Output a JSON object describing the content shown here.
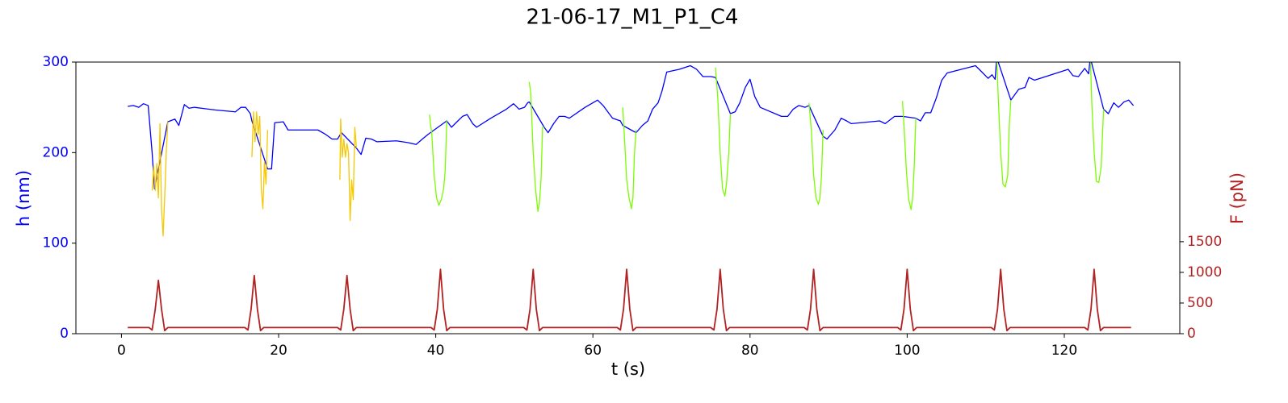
{
  "chart_data": {
    "type": "line",
    "title": "21-06-17_M1_P1_C4",
    "xlabel": "t (s)",
    "ylabel": "h (nm)",
    "y2label": "F (pN)",
    "ycolor": "#0000ff",
    "y2color": "#b22222",
    "xlim": [
      -5.8,
      134.7
    ],
    "xticks": [
      0,
      20,
      40,
      60,
      80,
      100,
      120
    ],
    "ylim": [
      0,
      300
    ],
    "yticks": [
      0,
      100,
      200,
      300
    ],
    "y2lim": [
      0,
      4430
    ],
    "y2ticks": [
      0,
      500,
      1000,
      1500
    ],
    "series": [
      {
        "color": "#0000ff",
        "axis": "y",
        "x": [
          0.8,
          1.5,
          2.2,
          2.8,
          3.4,
          3.9,
          4.2,
          5.9,
          6.8,
          7.3,
          8.0,
          8.6,
          9.3,
          12,
          14.5,
          15.2,
          15.8,
          16.4,
          16.6,
          18.6,
          19.1,
          19.5,
          20.6,
          21.2,
          25,
          26,
          26.8,
          27.5,
          28,
          29.9,
          30.5,
          31.1,
          31.8,
          32.5,
          35,
          36.5,
          37.5,
          38.3,
          39,
          41.4,
          42,
          42.7,
          43.4,
          44.0,
          44.7,
          45.2,
          47,
          49,
          49.9,
          50.6,
          51.3,
          51.7,
          51.9,
          53.8,
          54.3,
          55,
          55.7,
          56.4,
          57,
          59,
          60.6,
          61.3,
          62.5,
          63.5,
          63.8,
          65.5,
          66.3,
          67.0,
          67.6,
          68.3,
          68.8,
          69.4,
          71,
          72.4,
          73.2,
          74,
          75,
          75.6,
          77.5,
          78.1,
          78.7,
          79.4,
          80.0,
          80.6,
          81.3,
          84,
          84.8,
          85.5,
          86.2,
          87,
          87.5,
          89.3,
          89.8,
          90.8,
          91.6,
          92.3,
          92.9,
          96.5,
          97.2,
          98.4,
          98.9,
          99.4,
          101.1,
          101.7,
          102.3,
          103,
          103.7,
          104.4,
          105.1,
          106,
          108.7,
          109.4,
          110.3,
          110.8,
          111.2,
          111.4,
          113.2,
          114.2,
          115,
          115.5,
          116.2,
          120.5,
          121.1,
          121.8,
          122.6,
          123.1,
          123.3,
          125.0,
          125.6,
          126.3,
          126.9,
          127.6,
          128.2,
          128.8
        ],
        "values": [
          251,
          252,
          250,
          254,
          252,
          200,
          160,
          234,
          237,
          230,
          253,
          249,
          250,
          247,
          245,
          250,
          250,
          243,
          235,
          182,
          182,
          233,
          234,
          225,
          225,
          220,
          215,
          215,
          222,
          205,
          198,
          216,
          215,
          212,
          213,
          211,
          209,
          215,
          220,
          235,
          228,
          234,
          240,
          242,
          232,
          228,
          238,
          248,
          254,
          248,
          250,
          255,
          256,
          228,
          222,
          232,
          240,
          240,
          238,
          250,
          258,
          252,
          238,
          235,
          230,
          222,
          230,
          235,
          248,
          255,
          268,
          289,
          292,
          296,
          292,
          284,
          284,
          283,
          243,
          245,
          255,
          272,
          281,
          262,
          250,
          240,
          240,
          248,
          252,
          250,
          252,
          218,
          215,
          225,
          238,
          235,
          232,
          235,
          232,
          240,
          240,
          240,
          238,
          235,
          244,
          244,
          260,
          280,
          288,
          290,
          296,
          290,
          282,
          286,
          281,
          305,
          258,
          270,
          272,
          283,
          280,
          292,
          285,
          284,
          293,
          287,
          305,
          248,
          243,
          255,
          250,
          256,
          258,
          252
        ]
      },
      {
        "color": "#f5c800",
        "axis": "y",
        "x": [
          3.9,
          4.1,
          4.3,
          4.5,
          4.7,
          4.9,
          5.1,
          5.3,
          5.5,
          5.7,
          5.9,
          10,
          16.6,
          16.8,
          17.0,
          17.2,
          17.4,
          17.6,
          17.8,
          18.0,
          18.2,
          18.4,
          18.6,
          23,
          27.8,
          27.9,
          28.1,
          28.3,
          28.5,
          28.7,
          28.9,
          29.1,
          29.3,
          29.5,
          29.7,
          29.9
        ],
        "values": [
          158,
          185,
          158,
          188,
          150,
          232,
          137,
          108,
          150,
          200,
          234,
          null,
          195,
          245,
          212,
          245,
          220,
          240,
          160,
          138,
          190,
          165,
          225,
          null,
          170,
          237,
          195,
          215,
          195,
          210,
          200,
          125,
          170,
          148,
          228,
          205
        ]
      },
      {
        "color": "#7cfc00",
        "axis": "y",
        "x": [
          39.2,
          39.5,
          39.8,
          40.1,
          40.4,
          40.7,
          41.0,
          41.2,
          41.4,
          46,
          51.9,
          52.1,
          52.4,
          52.7,
          53.0,
          53.2,
          53.4,
          53.6,
          53.8,
          58,
          63.8,
          64.0,
          64.3,
          64.6,
          64.9,
          65.1,
          65.3,
          65.5,
          70,
          75.6,
          75.9,
          76.2,
          76.5,
          76.8,
          77.0,
          77.3,
          77.5,
          82,
          87.5,
          87.8,
          88.1,
          88.4,
          88.7,
          88.9,
          89.1,
          89.3,
          94,
          99.4,
          99.6,
          99.9,
          100.2,
          100.5,
          100.7,
          100.9,
          101.1,
          106,
          111.4,
          111.6,
          111.9,
          112.2,
          112.5,
          112.8,
          113.0,
          113.2,
          118,
          123.3,
          123.5,
          123.8,
          124.1,
          124.4,
          124.7,
          125.0
        ],
        "values": [
          242,
          220,
          175,
          150,
          142,
          148,
          160,
          180,
          235,
          null,
          278,
          265,
          200,
          160,
          135,
          145,
          170,
          228,
          228,
          null,
          250,
          220,
          170,
          150,
          138,
          150,
          200,
          225,
          null,
          294,
          260,
          200,
          160,
          152,
          165,
          200,
          243,
          null,
          255,
          225,
          175,
          150,
          143,
          150,
          175,
          225,
          null,
          257,
          230,
          180,
          148,
          137,
          150,
          185,
          238,
          null,
          305,
          260,
          200,
          165,
          162,
          175,
          230,
          258,
          null,
          310,
          255,
          200,
          168,
          167,
          185,
          248
        ]
      },
      {
        "color": "#b22222",
        "axis": "y2",
        "x": [
          0.8,
          3.5,
          3.9,
          4.3,
          4.7,
          5.1,
          5.5,
          5.9,
          15.7,
          16.1,
          16.5,
          16.9,
          17.3,
          17.7,
          18.1,
          27.5,
          27.9,
          28.3,
          28.7,
          29.1,
          29.5,
          29.9,
          39.4,
          39.8,
          40.2,
          40.6,
          41.0,
          41.4,
          41.8,
          51.2,
          51.6,
          52.0,
          52.4,
          52.8,
          53.2,
          53.6,
          63.1,
          63.5,
          63.9,
          64.3,
          64.7,
          65.1,
          65.5,
          75.0,
          75.4,
          75.8,
          76.2,
          76.6,
          77.0,
          77.4,
          86.9,
          87.3,
          87.7,
          88.1,
          88.5,
          88.9,
          89.3,
          98.8,
          99.2,
          99.6,
          100,
          100.4,
          100.8,
          101.2,
          110.7,
          111.1,
          111.5,
          111.9,
          112.3,
          112.7,
          113.1,
          122.6,
          123.0,
          123.4,
          123.8,
          124.2,
          124.6,
          125.0,
          128.5
        ],
        "values": [
          100,
          100,
          60,
          400,
          870,
          400,
          50,
          100,
          100,
          60,
          400,
          950,
          400,
          50,
          100,
          100,
          60,
          400,
          950,
          400,
          50,
          100,
          100,
          60,
          400,
          1050,
          400,
          50,
          100,
          100,
          60,
          400,
          1050,
          400,
          50,
          100,
          100,
          60,
          400,
          1050,
          400,
          50,
          100,
          100,
          60,
          400,
          1050,
          400,
          50,
          100,
          100,
          60,
          400,
          1050,
          400,
          50,
          100,
          100,
          60,
          400,
          1050,
          400,
          50,
          100,
          100,
          60,
          400,
          1050,
          400,
          50,
          100,
          100,
          60,
          400,
          1050,
          400,
          50,
          100,
          100
        ]
      }
    ]
  }
}
